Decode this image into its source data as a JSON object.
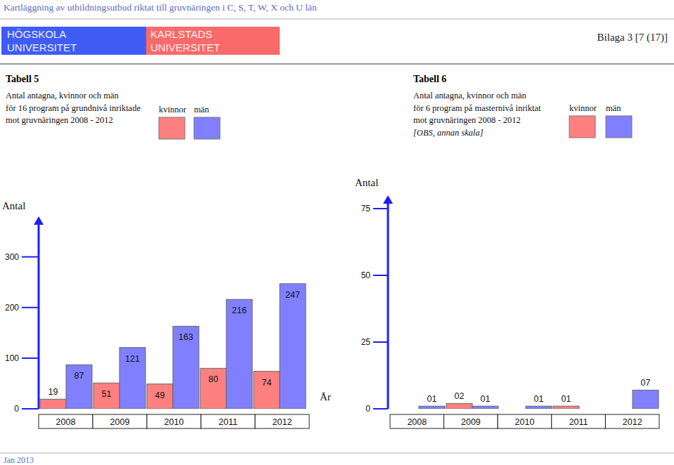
{
  "header": {
    "title": "Kartläggning av utbildningsutbud riktat till gruvnäringen i C, S, T, W, X och U län",
    "logo_left": [
      "HÖGSKOLA",
      "UNIVERSITET"
    ],
    "logo_right": [
      "KARLSTADS",
      "UNIVERSITET"
    ],
    "page": "Bilaga 3 [7 (17)]"
  },
  "footer": "Jan 2013",
  "chart_data": [
    {
      "type": "bar",
      "title": "Tabell 5",
      "subtitle": [
        "Antal antagna, kvinnor och män",
        "för 16 program på grundnivå inriktade",
        "mot gruvnäringen 2008 - 2012"
      ],
      "y_label": "Antal",
      "x_label": "År",
      "legend": "top",
      "categories": [
        "2008",
        "2009",
        "2010",
        "2011",
        "2012"
      ],
      "series": [
        {
          "name": "kvinnor",
          "color": "#ff8080",
          "values": [
            19,
            51,
            49,
            80,
            74
          ]
        },
        {
          "name": "män",
          "color": "#8080ff",
          "values": [
            87,
            121,
            163,
            216,
            247
          ]
        }
      ],
      "ylim": [
        0,
        380
      ],
      "yticks": [
        0,
        100,
        200,
        300
      ],
      "data_labels": true
    },
    {
      "type": "bar",
      "title": "Tabell 6",
      "subtitle": [
        "Antal antagna, kvinnor och män",
        "för 6 program på masternivå inriktat",
        "mot gruvnäringen 2008 - 2012"
      ],
      "annotation": "[OBS, annan skala]",
      "y_label": "Antal",
      "legend": "top",
      "categories": [
        "2008",
        "2009",
        "2010",
        "2011",
        "2012"
      ],
      "series": [
        {
          "name": "kvinnor",
          "color": "#ff8080",
          "values": [
            0,
            2,
            0,
            1,
            0
          ],
          "value_labels": [
            null,
            "02",
            null,
            "01",
            null
          ]
        },
        {
          "name": "män",
          "color": "#8080ff",
          "values": [
            1,
            1,
            1,
            0,
            7
          ],
          "value_labels": [
            "01",
            "01",
            "01",
            null,
            "07"
          ]
        }
      ],
      "ylim": [
        0,
        80
      ],
      "yticks": [
        0,
        25,
        50,
        75
      ],
      "data_labels": true
    }
  ]
}
